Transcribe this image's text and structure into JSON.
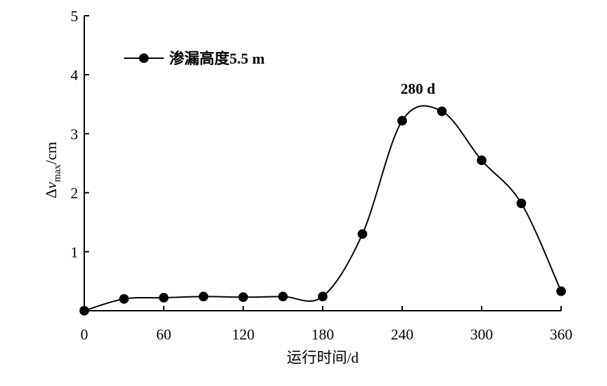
{
  "chart_data": {
    "type": "line",
    "xlabel": "运行时间/d",
    "ylabel_main": "Δ",
    "ylabel_var": "v",
    "ylabel_sub": "max",
    "ylabel_unit": "/cm",
    "xlim": [
      0,
      360
    ],
    "ylim": [
      0,
      5
    ],
    "xticks": [
      0,
      60,
      120,
      180,
      240,
      300,
      360
    ],
    "yticks": [
      1,
      2,
      3,
      4,
      5
    ],
    "grid": false,
    "legend_position": "top-left",
    "series": [
      {
        "name": "渗漏高度5.5 m",
        "x": [
          0,
          30,
          60,
          90,
          120,
          150,
          180,
          210,
          240,
          270,
          300,
          330,
          360
        ],
        "y": [
          0.0,
          0.2,
          0.22,
          0.24,
          0.23,
          0.24,
          0.24,
          1.3,
          3.22,
          3.38,
          2.55,
          1.82,
          0.33
        ]
      }
    ],
    "annotations": [
      {
        "text": "280 d",
        "x": 270,
        "y": 3.38
      }
    ]
  }
}
